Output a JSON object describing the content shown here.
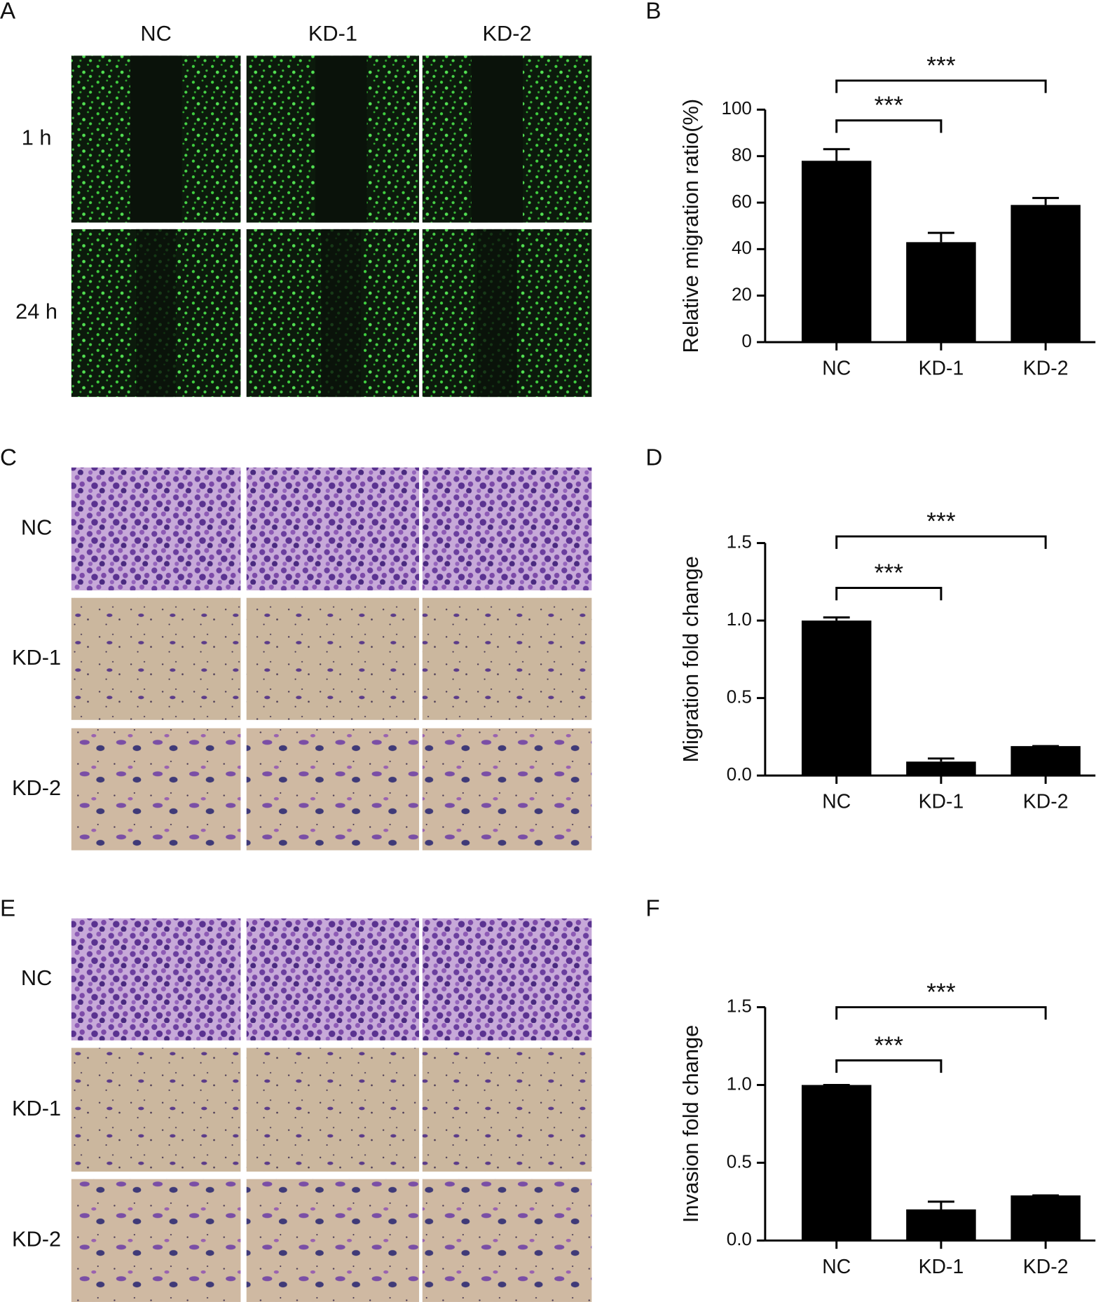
{
  "micrographs": [
    {
      "panel": "A",
      "columns": [
        "NC",
        "KD-1",
        "KD-2"
      ],
      "rows": [
        "1 h",
        "24 h"
      ]
    },
    {
      "panel": "C",
      "rows": [
        "NC",
        "KD-1",
        "KD-2"
      ]
    },
    {
      "panel": "E",
      "rows": [
        "NC",
        "KD-1",
        "KD-2"
      ]
    }
  ],
  "chart_data": [
    {
      "type": "bar",
      "panel": "B",
      "y_label": "Relative migration ratio(%)",
      "categories": [
        "NC",
        "KD-1",
        "KD-2"
      ],
      "values": [
        78,
        43,
        59
      ],
      "errors": [
        5,
        4,
        3
      ],
      "color": "#000000",
      "ylim": [
        0,
        100
      ],
      "yticks": [
        0,
        20,
        40,
        60,
        80,
        100
      ],
      "comparisons": [
        {
          "label": "***",
          "groups": [
            0,
            1
          ]
        },
        {
          "label": "***",
          "groups": [
            0,
            2
          ]
        }
      ]
    },
    {
      "type": "bar",
      "panel": "D",
      "y_label": "Migration fold change",
      "categories": [
        "NC",
        "KD-1",
        "KD-2"
      ],
      "values": [
        1.0,
        0.09,
        0.19
      ],
      "errors": [
        0.02,
        0.02,
        0
      ],
      "color": "#000000",
      "ylim": [
        0,
        1.5
      ],
      "yticks": [
        {
          "value": 0,
          "label": "0.0"
        },
        0.5,
        {
          "value": 1,
          "label": "1.0"
        },
        1.5
      ],
      "comparisons": [
        {
          "label": "***",
          "groups": [
            0,
            1
          ]
        },
        {
          "label": "***",
          "groups": [
            0,
            2
          ]
        }
      ]
    },
    {
      "type": "bar",
      "panel": "F",
      "y_label": "Invasion fold change",
      "categories": [
        "NC",
        "KD-1",
        "KD-2"
      ],
      "values": [
        1.0,
        0.2,
        0.29
      ],
      "errors": [
        0,
        0.05,
        0
      ],
      "color": "#000000",
      "ylim": [
        0,
        1.5
      ],
      "yticks": [
        {
          "value": 0,
          "label": "0.0"
        },
        0.5,
        {
          "value": 1,
          "label": "1.0"
        },
        1.5
      ],
      "comparisons": [
        {
          "label": "***",
          "groups": [
            0,
            1
          ]
        },
        {
          "label": "***",
          "groups": [
            0,
            2
          ]
        }
      ]
    }
  ]
}
